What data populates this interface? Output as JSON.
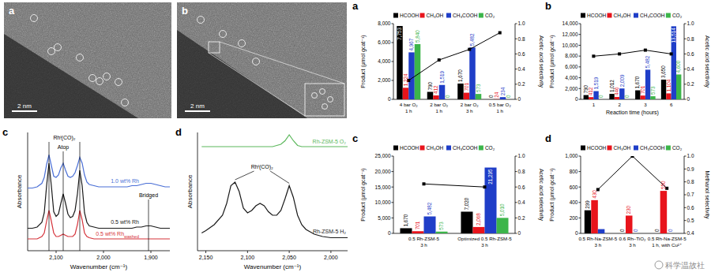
{
  "images": [
    {
      "label": "a",
      "scale_bar": "2 nm"
    },
    {
      "label": "b",
      "scale_bar": "2 nm"
    }
  ],
  "chart_data": [
    {
      "type": "line",
      "title": "c",
      "x_label": "Wavenumber (cm⁻¹)",
      "y_label": "Absorbance",
      "tick_labels": "x",
      "grid": false,
      "x": [
        2160,
        2150,
        2140,
        2130,
        2125,
        2120,
        2115,
        2110,
        2105,
        2100,
        2095,
        2090,
        2085,
        2080,
        2075,
        2070,
        2065,
        2060,
        2055,
        2050,
        2045,
        2040,
        2035,
        2030,
        2020,
        2010,
        2000,
        1990,
        1980,
        1970,
        1960,
        1950,
        1940,
        1930,
        1920,
        1910,
        1905,
        1900,
        1890,
        1880,
        1870,
        1860
      ],
      "xlim": [
        2160,
        1860
      ],
      "xticks": [
        {
          "value": 2100,
          "label": "2,100"
        },
        {
          "value": 2000,
          "label": "2,000"
        },
        {
          "value": 1900,
          "label": "1,900"
        }
      ],
      "ylim": [
        0,
        1
      ],
      "series": [
        {
          "name": "1.0 wt% Rh",
          "color": "#4a6fd6",
          "line_style": "solid",
          "values": [
            0.53,
            0.53,
            0.54,
            0.57,
            0.62,
            0.73,
            0.81,
            0.72,
            0.63,
            0.62,
            0.64,
            0.7,
            0.74,
            0.68,
            0.63,
            0.62,
            0.63,
            0.66,
            0.72,
            0.79,
            0.74,
            0.64,
            0.58,
            0.56,
            0.55,
            0.54,
            0.54,
            0.54,
            0.54,
            0.54,
            0.54,
            0.54,
            0.55,
            0.55,
            0.56,
            0.57,
            0.57,
            0.57,
            0.56,
            0.55,
            0.54,
            0.54
          ]
        },
        {
          "name": "0.5 wt% Rh",
          "color": "#1a1a1a",
          "line_style": "solid",
          "values": [
            0.19,
            0.19,
            0.2,
            0.24,
            0.32,
            0.55,
            0.74,
            0.55,
            0.33,
            0.29,
            0.31,
            0.4,
            0.48,
            0.4,
            0.31,
            0.28,
            0.29,
            0.34,
            0.48,
            0.68,
            0.55,
            0.32,
            0.24,
            0.21,
            0.2,
            0.19,
            0.19,
            0.19,
            0.19,
            0.19,
            0.19,
            0.19,
            0.19,
            0.2,
            0.2,
            0.21,
            0.21,
            0.21,
            0.2,
            0.19,
            0.19,
            0.19
          ]
        },
        {
          "name": "0.5 wt% Rh",
          "name_subscript": "washed",
          "color": "#d6333b",
          "line_style": "solid",
          "values": [
            0.1,
            0.1,
            0.1,
            0.12,
            0.15,
            0.25,
            0.34,
            0.25,
            0.15,
            0.12,
            0.12,
            0.13,
            0.14,
            0.13,
            0.12,
            0.12,
            0.12,
            0.14,
            0.22,
            0.34,
            0.26,
            0.15,
            0.12,
            0.11,
            0.1,
            0.1,
            0.1,
            0.1,
            0.1,
            0.1,
            0.1,
            0.1,
            0.1,
            0.1,
            0.1,
            0.1,
            0.1,
            0.1,
            0.1,
            0.1,
            0.1,
            0.1
          ]
        }
      ],
      "annotations": [
        {
          "text": "Rhᴵ(CO)₂",
          "x": [
            2115,
            2050
          ]
        },
        {
          "text": "Atop",
          "x": [
            2085
          ]
        },
        {
          "text": "Bridged",
          "x": [
            1905
          ]
        }
      ]
    },
    {
      "type": "line",
      "title": "d",
      "x_label": "Wavenumber (cm⁻¹)",
      "y_label": "Absorbance",
      "tick_labels": "x",
      "grid": false,
      "x": [
        2155,
        2150,
        2140,
        2130,
        2125,
        2120,
        2115,
        2110,
        2105,
        2100,
        2095,
        2090,
        2085,
        2080,
        2075,
        2070,
        2065,
        2060,
        2055,
        2050,
        2045,
        2040,
        2035,
        2030,
        2020,
        2010,
        2000,
        1990,
        1980
      ],
      "xlim": [
        2160,
        1980
      ],
      "xticks": [
        {
          "value": 2150,
          "label": "2,150"
        },
        {
          "value": 2100,
          "label": "2,100"
        },
        {
          "value": 2050,
          "label": "2,050"
        },
        {
          "value": 2000,
          "label": "2,000"
        }
      ],
      "ylim": [
        0,
        1
      ],
      "series": [
        {
          "name": "Rh-ZSM-5 O₂",
          "color": "#5cb85c",
          "line_style": "solid",
          "values": [
            0.88,
            0.88,
            0.88,
            0.88,
            0.88,
            0.88,
            0.88,
            0.88,
            0.88,
            0.88,
            0.88,
            0.88,
            0.88,
            0.88,
            0.88,
            0.88,
            0.89,
            0.9,
            0.93,
            0.98,
            0.93,
            0.89,
            0.88,
            0.88,
            0.88,
            0.88,
            0.88,
            0.88,
            0.88
          ]
        },
        {
          "name": "Rh-ZSM-5 H₂",
          "color": "#1a1a1a",
          "line_style": "solid",
          "values": [
            0.15,
            0.17,
            0.22,
            0.3,
            0.4,
            0.55,
            0.58,
            0.5,
            0.36,
            0.32,
            0.34,
            0.38,
            0.4,
            0.38,
            0.33,
            0.3,
            0.3,
            0.34,
            0.44,
            0.55,
            0.45,
            0.3,
            0.22,
            0.18,
            0.14,
            0.12,
            0.11,
            0.11,
            0.11
          ]
        }
      ],
      "annotations": [
        {
          "text": "Rhᴵ(CO)₂",
          "x": [
            2115,
            2050
          ]
        }
      ]
    },
    {
      "type": "bar",
      "title": "a",
      "y_label": "Product (μmol gcat⁻¹)",
      "y2_label": "Acetic acid selectivity",
      "grid": false,
      "data_labels": true,
      "categories": [
        "4 bar O₂\n1 h",
        "2 bar O₂\n1 h",
        "2 bar O₂\n3 h",
        "0.5 bar O₂\n1 h"
      ],
      "ylim": [
        0,
        8000
      ],
      "yticks": [
        0,
        {
          "value": 2000,
          "label": "2,000"
        },
        {
          "value": 4000,
          "label": "4,000"
        },
        {
          "value": 6000,
          "label": "6,000"
        },
        {
          "value": 8000,
          "label": "8,000"
        }
      ],
      "y2lim": [
        0,
        1
      ],
      "y2ticks": [
        0,
        0.2,
        0.4,
        0.6,
        0.8,
        {
          "value": 1,
          "label": "1.0"
        }
      ],
      "series": [
        {
          "name": "HCOOH",
          "color": "#000000",
          "values": [
            7753,
            790,
            1670,
            0
          ],
          "value_labels": [
            "7,753",
            "790",
            "1,670",
            "0"
          ]
        },
        {
          "name": "CH₃OH",
          "color": "#e8141c",
          "values": [
            1224,
            412,
            701,
            24
          ],
          "value_labels": [
            "1,224",
            "412",
            "701",
            "24"
          ]
        },
        {
          "name": "CH₃COOH",
          "color": "#1f3ec8",
          "values": [
            4967,
            1519,
            5482,
            234
          ],
          "value_labels": [
            "4,967",
            "1,519",
            "5,482",
            "234"
          ]
        },
        {
          "name": "CO₂",
          "color": "#3cb54a",
          "values": [
            5840,
            0,
            573,
            0
          ],
          "value_labels": [
            "5,840",
            "0",
            "573",
            "0"
          ]
        },
        {
          "type": "line",
          "axis": "y2",
          "color": "#000000",
          "marker": "square",
          "line_style": "solid",
          "values": [
            0.25,
            0.52,
            0.66,
            0.88
          ]
        }
      ]
    },
    {
      "type": "bar",
      "title": "b",
      "y_label": "Product (μmol gcat⁻¹)",
      "y2_label": "Acetic acid selectivity",
      "x_label": "Reaction time (hours)",
      "grid": false,
      "data_labels": true,
      "categories": [
        "1",
        "2",
        "3",
        "6"
      ],
      "ylim": [
        0,
        14000
      ],
      "yticks": [
        0,
        {
          "value": 2000,
          "label": "2,000"
        },
        {
          "value": 4000,
          "label": "4,000"
        },
        {
          "value": 6000,
          "label": "6,000"
        },
        {
          "value": 8000,
          "label": "8,000"
        },
        {
          "value": 10000,
          "label": "10,000"
        },
        {
          "value": 12000,
          "label": "12,000"
        },
        {
          "value": 14000,
          "label": "14,000"
        }
      ],
      "y2lim": [
        0,
        1
      ],
      "y2ticks": [
        0,
        0.2,
        0.4,
        0.6,
        0.8,
        {
          "value": 1,
          "label": "1.0"
        }
      ],
      "series": [
        {
          "name": "HCOOH",
          "color": "#000000",
          "values": [
            790,
            1012,
            1670,
            3650
          ],
          "value_labels": [
            "790",
            "1,012",
            "1,670",
            "3,650"
          ]
        },
        {
          "name": "CH₃OH",
          "color": "#e8141c",
          "values": [
            412,
            446,
            701,
            1104
          ],
          "value_labels": [
            "412",
            "446",
            "701",
            "1,104"
          ]
        },
        {
          "name": "CH₃COOH",
          "color": "#1f3ec8",
          "values": [
            1519,
            2009,
            5482,
            13514
          ],
          "value_labels": [
            "1,519",
            "2,009",
            "5,482",
            "13,514"
          ]
        },
        {
          "name": "CO₂",
          "color": "#3cb54a",
          "values": [
            0,
            0,
            573,
            4600
          ],
          "value_labels": [
            "0",
            "0",
            "573",
            "4,600"
          ]
        },
        {
          "type": "line",
          "axis": "y2",
          "color": "#000000",
          "marker": "square",
          "line_style": "solid",
          "values": [
            0.57,
            0.6,
            0.65,
            0.6
          ]
        }
      ]
    },
    {
      "type": "bar",
      "title": "c",
      "y_label": "Product (μmol gcat⁻¹)",
      "y2_label": "Acetic acid selectivity",
      "grid": false,
      "data_labels": true,
      "categories": [
        "0.5 Rh-ZSM-5\n3 h",
        "Optimized 0.5 Rh-ZSM-5\n3 h"
      ],
      "ylim": [
        0,
        25000
      ],
      "yticks": [
        0,
        {
          "value": 5000,
          "label": "5,000"
        },
        {
          "value": 10000,
          "label": "10,000"
        },
        {
          "value": 15000,
          "label": "15,000"
        },
        {
          "value": 20000,
          "label": "20,000"
        },
        {
          "value": 25000,
          "label": "25,000"
        }
      ],
      "y2lim": [
        0,
        1
      ],
      "y2ticks": [
        0,
        0.2,
        0.4,
        0.6,
        0.8,
        {
          "value": 1,
          "label": "1.0"
        }
      ],
      "series": [
        {
          "name": "HCOOH",
          "color": "#000000",
          "values": [
            1670,
            7020
          ],
          "value_labels": [
            "1,670",
            "7,020"
          ]
        },
        {
          "name": "CH₃OH",
          "color": "#e8141c",
          "values": [
            701,
            2068
          ],
          "value_labels": [
            "701",
            "2,068"
          ]
        },
        {
          "name": "CH₃COOH",
          "color": "#1f3ec8",
          "values": [
            5482,
            21295
          ],
          "value_labels": [
            "5,482",
            "21,295"
          ]
        },
        {
          "name": "CO₂",
          "color": "#3cb54a",
          "values": [
            573,
            5010
          ],
          "value_labels": [
            "573",
            "5,010"
          ]
        },
        {
          "type": "line",
          "axis": "y2",
          "color": "#000000",
          "marker": "square",
          "line_style": "solid",
          "values": [
            0.64,
            0.6
          ]
        }
      ]
    },
    {
      "type": "bar",
      "title": "d",
      "y_label": "Product (μmol gcat⁻¹)",
      "y2_label": "Methanol selectivity",
      "grid": false,
      "data_labels": true,
      "categories": [
        "0.5 Rh-Na-ZSM-5\n3 h",
        "0.6 Rh–TiO₂\n3 h",
        "0.5 Rh-Na-ZSM-5\n1 h, with Cu²⁺"
      ],
      "ylim": [
        0,
        1000
      ],
      "yticks": [
        0,
        200,
        400,
        600,
        800,
        {
          "value": 1000,
          "label": "1,000"
        }
      ],
      "y2lim": [
        0.4,
        1
      ],
      "y2ticks": [
        0.4,
        0.5,
        0.6,
        0.7,
        0.8,
        0.9,
        {
          "value": 1,
          "label": "1.0"
        }
      ],
      "series": [
        {
          "name": "HCOOH",
          "color": "#000000",
          "values": [
            299,
            0,
            0
          ],
          "value_labels": [
            "299",
            "0",
            "0"
          ]
        },
        {
          "name": "CH₃OH",
          "color": "#e8141c",
          "values": [
            430,
            230,
            550
          ],
          "value_labels": [
            "430",
            "230",
            "550"
          ]
        },
        {
          "name": "CH₃COOH",
          "color": "#1f3ec8",
          "values": [
            55,
            0,
            0
          ],
          "value_labels": [
            null,
            "0",
            "0"
          ]
        },
        {
          "name": "CO₂",
          "color": "#3cb54a",
          "values": [
            0,
            0,
            0
          ],
          "value_labels": [
            null,
            null,
            null
          ]
        },
        {
          "type": "line",
          "axis": "y2",
          "color": "#000000",
          "marker": "square",
          "line_style": "solid",
          "values": [
            0.74,
            1,
            0.75
          ]
        }
      ]
    }
  ],
  "watermark": "科学温故社"
}
